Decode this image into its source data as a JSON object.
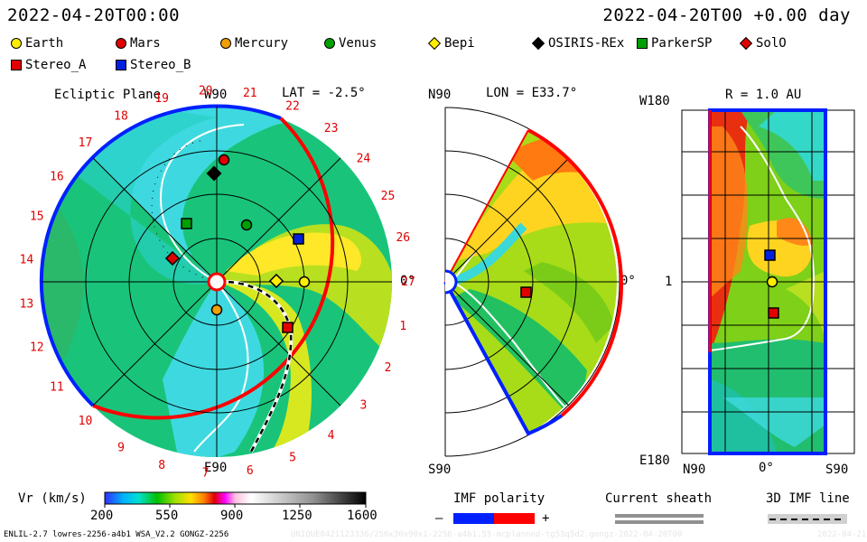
{
  "header": {
    "datetime": "2022-04-20T00:00",
    "offset": "2022-04-20T00 +0.00 day"
  },
  "legend": [
    {
      "name": "Earth",
      "shape": "circle",
      "color": "#ffee00"
    },
    {
      "name": "Mars",
      "shape": "circle",
      "color": "#e00000"
    },
    {
      "name": "Mercury",
      "shape": "circle",
      "color": "#f0a000"
    },
    {
      "name": "Venus",
      "shape": "circle",
      "color": "#00a000"
    },
    {
      "name": "Bepi",
      "shape": "diamond",
      "color": "#ffee00"
    },
    {
      "name": "OSIRIS-REx",
      "shape": "diamond",
      "color": "#000000"
    },
    {
      "name": "ParkerSP",
      "shape": "square",
      "color": "#00a000"
    },
    {
      "name": "SolO",
      "shape": "diamond",
      "color": "#e00000"
    },
    {
      "name": "Stereo_A",
      "shape": "square",
      "color": "#e00000"
    },
    {
      "name": "Stereo_B",
      "shape": "square",
      "color": "#0020e0"
    }
  ],
  "panel_ecliptic": {
    "title": "Ecliptic Plane",
    "lat": "LAT = -2.5°",
    "top_label": "W90",
    "bottom_label": "E90",
    "right_label": "0°",
    "rotation_numbers": [
      "1",
      "2",
      "3",
      "4",
      "5",
      "6",
      "7",
      "8",
      "9",
      "10",
      "11",
      "12",
      "13",
      "14",
      "15",
      "16",
      "17",
      "18",
      "19",
      "20",
      "21",
      "22",
      "23",
      "24",
      "25",
      "26",
      "27"
    ]
  },
  "panel_meridional": {
    "lon": "LON = E33.7°",
    "top_label": "N90",
    "bottom_label": "S90",
    "right_label": "0°"
  },
  "panel_shell": {
    "title": "R = 1.0 AU",
    "top_left": "W180",
    "bottom_left": "E180",
    "mid_left": "1",
    "x_left": "N90",
    "x_mid": "0°",
    "x_right": "S90"
  },
  "colorbar": {
    "label": "Vr (km/s)",
    "ticks": [
      "200",
      "550",
      "900",
      "1250",
      "1600"
    ]
  },
  "imf": {
    "label": "IMF polarity",
    "minus": "–",
    "plus": "+"
  },
  "sheath": {
    "label": "Current sheath"
  },
  "imf3d": {
    "label": "3D IMF line"
  },
  "footer": {
    "model": "ENLIL-2.7 lowres-2256-a4b1 WSA_V2.2 GONGZ-2256",
    "run_id": "UNIQUE0421123336/256x30x90x1-2256-a4b1.55-mcplanned-tg53q5d2.gongz-2022-04-20T00",
    "date_right": "2022-04-21"
  },
  "colors": {
    "positive": "#ff0000",
    "negative": "#0020ff"
  }
}
